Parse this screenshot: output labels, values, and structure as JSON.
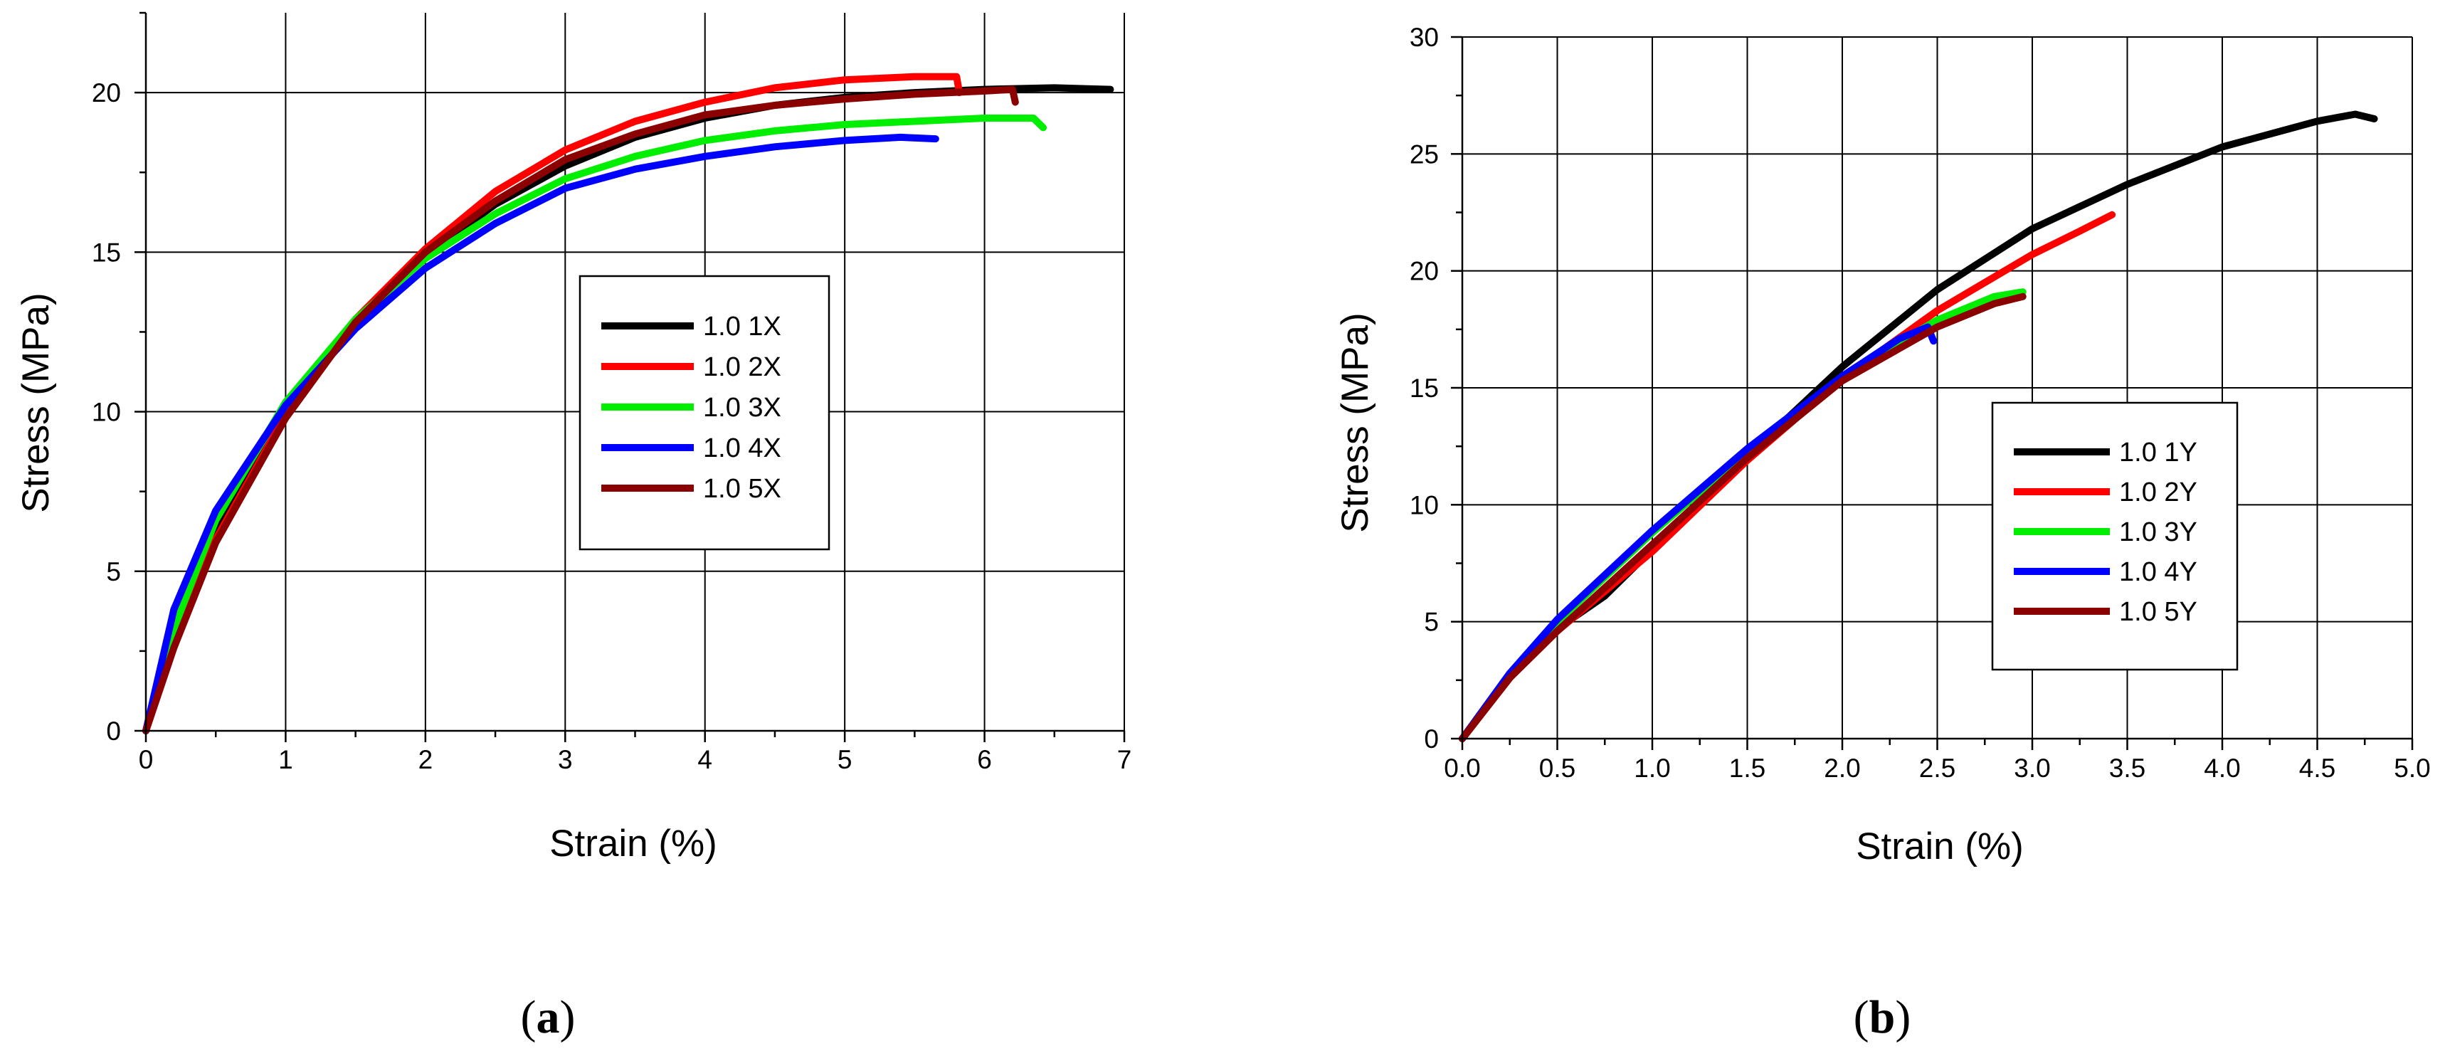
{
  "figure": {
    "panel_a_label": "a",
    "panel_b_label": "b"
  },
  "chart_data": [
    {
      "type": "line",
      "panel": "a",
      "xlabel": "Strain (%)",
      "ylabel": "Stress (MPa)",
      "xlim": [
        0,
        7
      ],
      "ylim": [
        0,
        22.5
      ],
      "xticks": [
        0,
        1,
        2,
        3,
        4,
        5,
        6,
        7
      ],
      "xtick_labels": [
        "0",
        "1",
        "2",
        "3",
        "4",
        "5",
        "6",
        "7"
      ],
      "yticks": [
        0,
        5,
        10,
        15,
        20
      ],
      "ytick_labels": [
        "0",
        "5",
        "10",
        "15",
        "20"
      ],
      "grid": true,
      "legend_position": "center-right",
      "series": [
        {
          "name": "1.0 1X",
          "color": "#000000",
          "points": [
            [
              0,
              0
            ],
            [
              0.2,
              3.0
            ],
            [
              0.5,
              6.2
            ],
            [
              1,
              10.0
            ],
            [
              1.5,
              12.8
            ],
            [
              2,
              14.9
            ],
            [
              2.5,
              16.5
            ],
            [
              3,
              17.7
            ],
            [
              3.5,
              18.6
            ],
            [
              4,
              19.2
            ],
            [
              4.5,
              19.6
            ],
            [
              5,
              19.85
            ],
            [
              5.5,
              20.0
            ],
            [
              6,
              20.1
            ],
            [
              6.5,
              20.15
            ],
            [
              6.9,
              20.1
            ]
          ]
        },
        {
          "name": "1.0 2X",
          "color": "#ff0000",
          "points": [
            [
              0,
              0
            ],
            [
              0.2,
              2.7
            ],
            [
              0.5,
              6.0
            ],
            [
              1,
              9.9
            ],
            [
              1.5,
              12.9
            ],
            [
              2,
              15.1
            ],
            [
              2.5,
              16.9
            ],
            [
              3,
              18.2
            ],
            [
              3.5,
              19.1
            ],
            [
              4,
              19.7
            ],
            [
              4.5,
              20.15
            ],
            [
              5,
              20.4
            ],
            [
              5.5,
              20.5
            ],
            [
              5.8,
              20.5
            ],
            [
              5.82,
              20.0
            ]
          ]
        },
        {
          "name": "1.0 3X",
          "color": "#00ee00",
          "points": [
            [
              0,
              0
            ],
            [
              0.2,
              3.2
            ],
            [
              0.5,
              6.6
            ],
            [
              1,
              10.3
            ],
            [
              1.5,
              12.9
            ],
            [
              2,
              14.8
            ],
            [
              2.5,
              16.2
            ],
            [
              3,
              17.3
            ],
            [
              3.5,
              18.0
            ],
            [
              4,
              18.5
            ],
            [
              4.5,
              18.8
            ],
            [
              5,
              19.0
            ],
            [
              5.5,
              19.1
            ],
            [
              6,
              19.2
            ],
            [
              6.35,
              19.2
            ],
            [
              6.42,
              18.9
            ]
          ]
        },
        {
          "name": "1.0 4X",
          "color": "#0000ff",
          "points": [
            [
              0,
              0
            ],
            [
              0.2,
              3.8
            ],
            [
              0.5,
              6.9
            ],
            [
              1,
              10.2
            ],
            [
              1.5,
              12.6
            ],
            [
              2,
              14.5
            ],
            [
              2.5,
              15.9
            ],
            [
              3,
              17.0
            ],
            [
              3.5,
              17.6
            ],
            [
              4,
              18.0
            ],
            [
              4.5,
              18.3
            ],
            [
              5,
              18.5
            ],
            [
              5.4,
              18.6
            ],
            [
              5.65,
              18.55
            ]
          ]
        },
        {
          "name": "1.0 5X",
          "color": "#8b0000",
          "points": [
            [
              0,
              0
            ],
            [
              0.2,
              2.6
            ],
            [
              0.5,
              5.9
            ],
            [
              1,
              9.8
            ],
            [
              1.5,
              12.8
            ],
            [
              2,
              15.0
            ],
            [
              2.5,
              16.6
            ],
            [
              3,
              17.9
            ],
            [
              3.5,
              18.7
            ],
            [
              4,
              19.3
            ],
            [
              4.5,
              19.6
            ],
            [
              5,
              19.8
            ],
            [
              5.5,
              19.95
            ],
            [
              6,
              20.05
            ],
            [
              6.2,
              20.1
            ],
            [
              6.22,
              19.7
            ]
          ]
        }
      ]
    },
    {
      "type": "line",
      "panel": "b",
      "xlabel": "Strain (%)",
      "ylabel": "Stress (MPa)",
      "xlim": [
        0,
        5.0
      ],
      "ylim": [
        0,
        30
      ],
      "xticks": [
        0,
        0.5,
        1,
        1.5,
        2,
        2.5,
        3,
        3.5,
        4,
        4.5,
        5
      ],
      "xtick_labels": [
        "0.0",
        "0.5",
        "1.0",
        "1.5",
        "2.0",
        "2.5",
        "3.0",
        "3.5",
        "4.0",
        "4.5",
        "5.0"
      ],
      "yticks": [
        0,
        5,
        10,
        15,
        20,
        25,
        30
      ],
      "ytick_labels": [
        "0",
        "5",
        "10",
        "15",
        "20",
        "25",
        "30"
      ],
      "grid": true,
      "legend_position": "center-right",
      "series": [
        {
          "name": "1.0 1Y",
          "color": "#000000",
          "points": [
            [
              0,
              0
            ],
            [
              0.25,
              2.6
            ],
            [
              0.5,
              4.7
            ],
            [
              0.75,
              6.1
            ],
            [
              1,
              8.1
            ],
            [
              1.5,
              12.1
            ],
            [
              2,
              15.9
            ],
            [
              2.5,
              19.2
            ],
            [
              3,
              21.8
            ],
            [
              3.5,
              23.7
            ],
            [
              4,
              25.3
            ],
            [
              4.5,
              26.4
            ],
            [
              4.7,
              26.7
            ],
            [
              4.8,
              26.5
            ]
          ]
        },
        {
          "name": "1.0 2Y",
          "color": "#ff0000",
          "points": [
            [
              0,
              0
            ],
            [
              0.25,
              2.6
            ],
            [
              0.5,
              4.6
            ],
            [
              1,
              8.0
            ],
            [
              1.5,
              11.9
            ],
            [
              2,
              15.4
            ],
            [
              2.5,
              18.3
            ],
            [
              3,
              20.7
            ],
            [
              3.25,
              21.7
            ],
            [
              3.42,
              22.4
            ]
          ]
        },
        {
          "name": "1.0 3Y",
          "color": "#00ee00",
          "points": [
            [
              0,
              0
            ],
            [
              0.25,
              2.7
            ],
            [
              0.5,
              5.0
            ],
            [
              1,
              8.8
            ],
            [
              1.5,
              12.3
            ],
            [
              2,
              15.5
            ],
            [
              2.5,
              17.9
            ],
            [
              2.8,
              18.9
            ],
            [
              2.95,
              19.1
            ]
          ]
        },
        {
          "name": "1.0 4Y",
          "color": "#0000ff",
          "points": [
            [
              0,
              0
            ],
            [
              0.25,
              2.8
            ],
            [
              0.5,
              5.1
            ],
            [
              1,
              8.9
            ],
            [
              1.5,
              12.4
            ],
            [
              2,
              15.5
            ],
            [
              2.3,
              17.1
            ],
            [
              2.45,
              17.6
            ],
            [
              2.48,
              17.0
            ]
          ]
        },
        {
          "name": "1.0 5Y",
          "color": "#8b0000",
          "points": [
            [
              0,
              0
            ],
            [
              0.25,
              2.6
            ],
            [
              0.5,
              4.6
            ],
            [
              1,
              8.3
            ],
            [
              1.5,
              12.0
            ],
            [
              2,
              15.3
            ],
            [
              2.5,
              17.6
            ],
            [
              2.8,
              18.6
            ],
            [
              2.95,
              18.9
            ]
          ]
        }
      ]
    }
  ]
}
